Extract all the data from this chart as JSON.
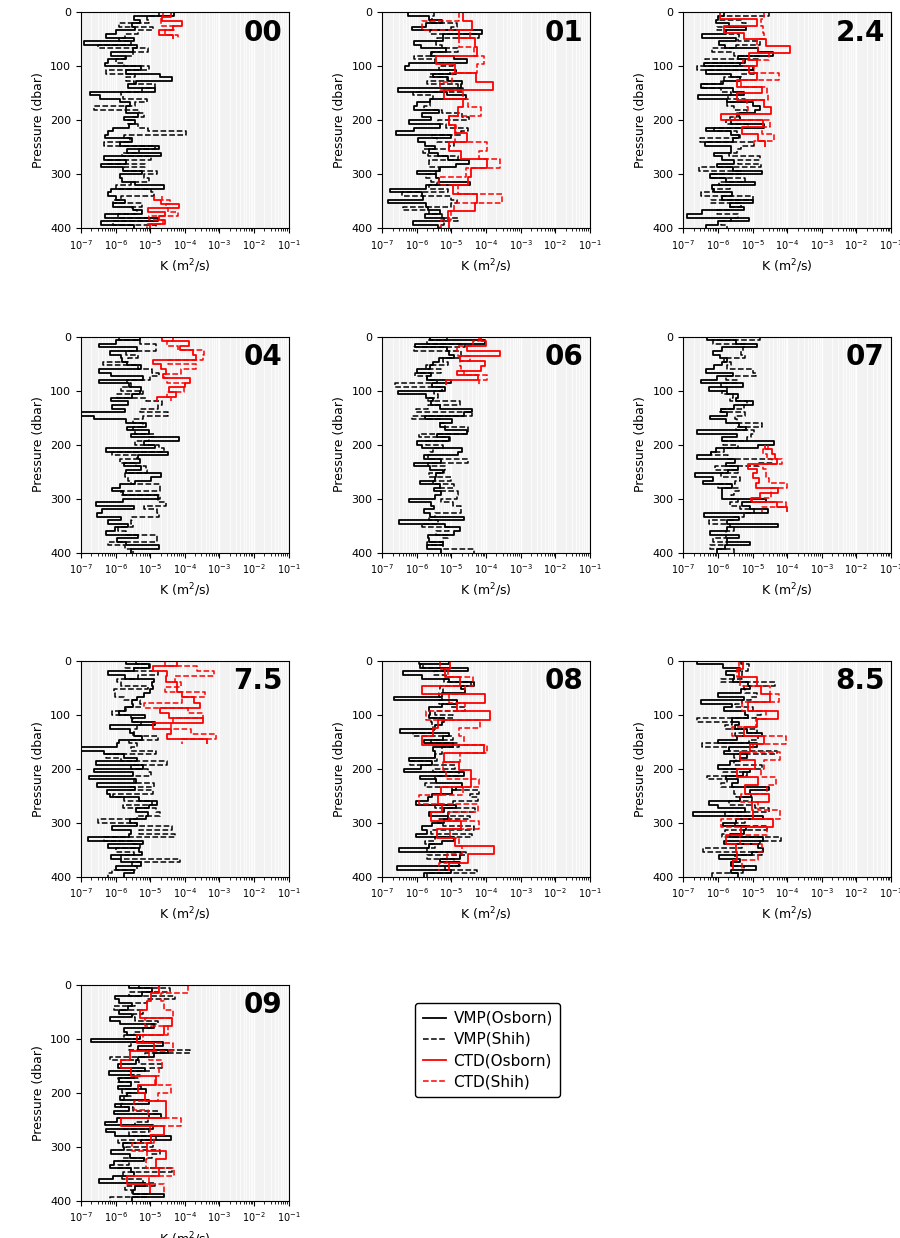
{
  "panels": [
    {
      "label": "00",
      "row": 0,
      "col": 0
    },
    {
      "label": "01",
      "row": 0,
      "col": 1
    },
    {
      "label": "2.4",
      "row": 0,
      "col": 2
    },
    {
      "label": "04",
      "row": 1,
      "col": 0
    },
    {
      "label": "06",
      "row": 1,
      "col": 1
    },
    {
      "label": "07",
      "row": 1,
      "col": 2
    },
    {
      "label": "7.5",
      "row": 2,
      "col": 0
    },
    {
      "label": "08",
      "row": 2,
      "col": 1
    },
    {
      "label": "8.5",
      "row": 2,
      "col": 2
    },
    {
      "label": "09",
      "row": 3,
      "col": 0
    }
  ],
  "nrows": 4,
  "ncols": 3,
  "xlim_log": [
    -7,
    -1
  ],
  "ylim": [
    0,
    400
  ],
  "xlabel": "K (m$^2$/s)",
  "ylabel": "Pressure (dbar)",
  "xticks": [
    -7,
    -6,
    -5,
    -4,
    -3,
    -2,
    -1
  ],
  "yticks": [
    0,
    100,
    200,
    300,
    400
  ],
  "legend_labels": [
    "VMP(Osborn)",
    "VMP(Shih)",
    "CTD(Osborn)",
    "CTD(Shih)"
  ],
  "legend_colors": [
    "black",
    "black",
    "red",
    "red"
  ],
  "legend_linestyles": [
    "-",
    "--",
    "-",
    "--"
  ],
  "background_color": "#f2f2f2",
  "grid_color": "#ffffff",
  "panel_label_fontsize": 20,
  "axis_label_fontsize": 9,
  "tick_fontsize": 8
}
